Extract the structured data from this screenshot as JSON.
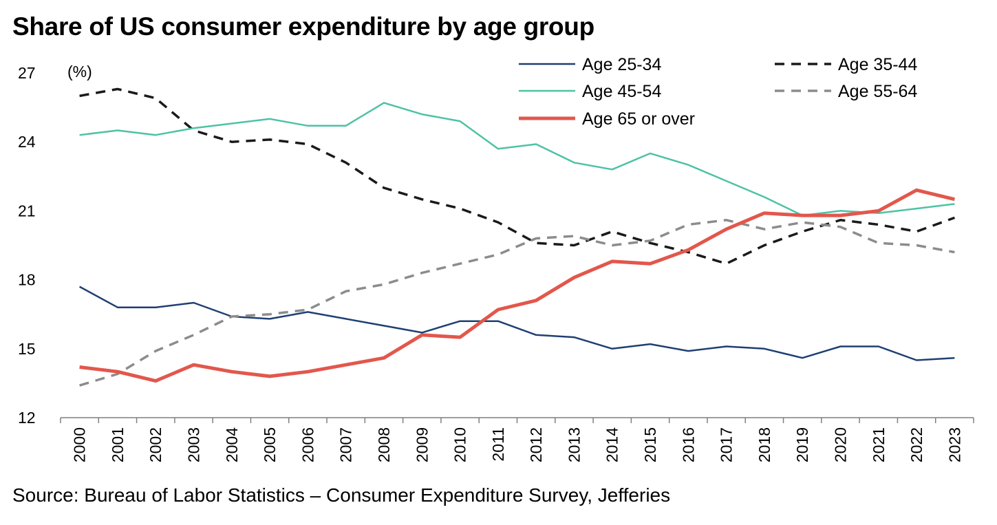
{
  "chart_data": {
    "type": "line",
    "title": "Share of US consumer expenditure by age group",
    "source": "Source: Bureau of Labor Statistics – Consumer Expenditure Survey, Jefferies",
    "unit_label": "(%)",
    "xlabel": "",
    "ylabel": "",
    "ylim": [
      12,
      27
    ],
    "yticks": [
      12,
      15,
      18,
      21,
      24,
      27
    ],
    "grid": false,
    "legend_position": "top-right",
    "x": [
      "2000",
      "2001",
      "2002",
      "2003",
      "2004",
      "2005",
      "2006",
      "2007",
      "2008",
      "2009",
      "2010",
      "2011",
      "2012",
      "2013",
      "2014",
      "2015",
      "2016",
      "2017",
      "2018",
      "2019",
      "2020",
      "2021",
      "2022",
      "2023"
    ],
    "series": [
      {
        "name": "Age 25-34",
        "color": "#1f3f73",
        "dash": "solid",
        "values": [
          17.7,
          16.8,
          16.8,
          17.0,
          16.4,
          16.3,
          16.6,
          16.3,
          16.0,
          15.7,
          16.2,
          16.2,
          15.6,
          15.5,
          15.0,
          15.2,
          14.9,
          15.1,
          15.0,
          14.6,
          15.1,
          15.1,
          14.5,
          14.6
        ]
      },
      {
        "name": "Age 35-44",
        "color": "#1a1a1a",
        "dash": "dashed",
        "values": [
          26.0,
          26.3,
          25.9,
          24.5,
          24.0,
          24.1,
          23.9,
          23.1,
          22.0,
          21.5,
          21.1,
          20.5,
          19.6,
          19.5,
          20.1,
          19.6,
          19.2,
          18.7,
          19.5,
          20.1,
          20.6,
          20.4,
          20.1,
          20.7
        ]
      },
      {
        "name": "Age 45-54",
        "color": "#4dc2a4",
        "dash": "solid",
        "values": [
          24.3,
          24.5,
          24.3,
          24.6,
          24.8,
          25.0,
          24.7,
          24.7,
          25.7,
          25.2,
          24.9,
          23.7,
          23.9,
          23.1,
          22.8,
          23.5,
          23.0,
          22.3,
          21.6,
          20.8,
          21.0,
          20.9,
          21.1,
          21.3
        ]
      },
      {
        "name": "Age 55-64",
        "color": "#8c8c8c",
        "dash": "dashed",
        "values": [
          13.4,
          13.9,
          14.9,
          15.6,
          16.4,
          16.5,
          16.7,
          17.5,
          17.8,
          18.3,
          18.7,
          19.1,
          19.8,
          19.9,
          19.5,
          19.7,
          20.4,
          20.6,
          20.2,
          20.5,
          20.3,
          19.6,
          19.5,
          19.2
        ]
      },
      {
        "name": "Age 65 or over",
        "color": "#e2574c",
        "dash": "solid",
        "values": [
          14.2,
          14.0,
          13.6,
          14.3,
          14.0,
          13.8,
          14.0,
          14.3,
          14.6,
          15.6,
          15.5,
          16.7,
          17.1,
          18.1,
          18.8,
          18.7,
          19.3,
          20.2,
          20.9,
          20.8,
          20.8,
          21.0,
          21.9,
          21.5
        ]
      }
    ]
  }
}
